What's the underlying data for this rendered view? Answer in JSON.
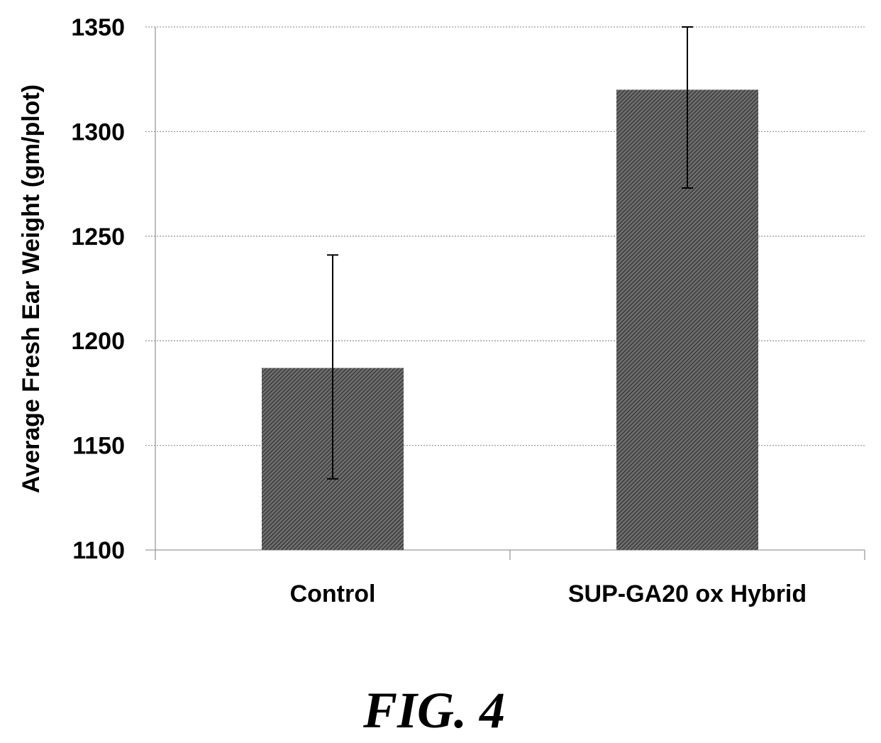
{
  "chart_data": {
    "type": "bar",
    "categories": [
      "Control",
      "SUP-GA20 ox Hybrid"
    ],
    "values": [
      1187,
      1320
    ],
    "error_bars": [
      {
        "low": 1134,
        "high": 1241
      },
      {
        "low": 1273,
        "high": 1350
      }
    ],
    "ylabel": "Average Fresh Ear Weight (gm/plot)",
    "xlabel": "",
    "ylim": [
      1100,
      1350
    ],
    "yticks": [
      1100,
      1150,
      1200,
      1250,
      1300,
      1350
    ],
    "ytick_labels": [
      "1100",
      "1150",
      "1200",
      "1250",
      "1300",
      "1350"
    ],
    "grid": true,
    "bar_fill": "hatched dark gray",
    "bar_color": "#3c3c3c"
  },
  "caption": "FIG. 4"
}
